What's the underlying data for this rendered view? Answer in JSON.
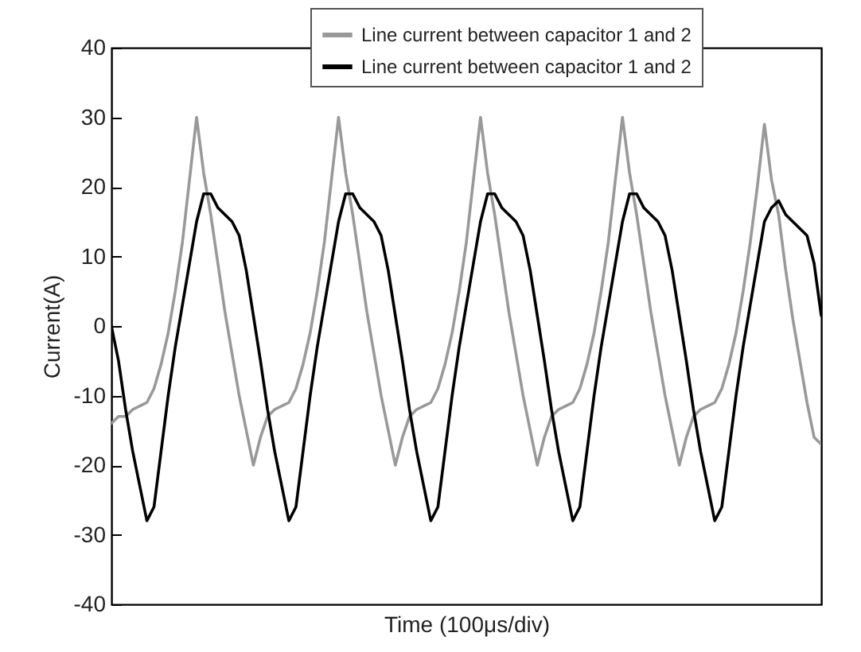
{
  "chart_data": {
    "type": "line",
    "xlabel": "Time (100μs/div)",
    "ylabel": "Current(A)",
    "categories": [
      null,
      null,
      null,
      null,
      null,
      null,
      null,
      null,
      null,
      null,
      null,
      null,
      null,
      null,
      null,
      null,
      null,
      null,
      null,
      null,
      null,
      null,
      null,
      null,
      null,
      null,
      null,
      null,
      null,
      null,
      null,
      null,
      null,
      null,
      null,
      null,
      null,
      null,
      null,
      null,
      null,
      null,
      null,
      null,
      null,
      null,
      null,
      null,
      null,
      null,
      null,
      null,
      null,
      null,
      null,
      null,
      null,
      null,
      null,
      null,
      null,
      null,
      null,
      null,
      null,
      null,
      null,
      null,
      null,
      null,
      null,
      null,
      null,
      null,
      null,
      null,
      null,
      null,
      null,
      null,
      null,
      null,
      null,
      null,
      null,
      null,
      null,
      null,
      null,
      null,
      null,
      null,
      null,
      null,
      null,
      null,
      null,
      null,
      null,
      null,
      null
    ],
    "ylim": [
      -40,
      40
    ],
    "yticks": [
      -40,
      -30,
      -20,
      -10,
      0,
      10,
      20,
      30,
      40
    ],
    "tick_labels": "y",
    "grid": false,
    "legend": "top right",
    "line_style": "solid",
    "series": [
      {
        "name": "Line current between capacitor 1 and 2",
        "color": "#999999",
        "values": [
          -14,
          -13,
          -13,
          -12,
          -11.5,
          -11,
          -9,
          -5.5,
          -1,
          5,
          12,
          21,
          30,
          22,
          16,
          9,
          2,
          -4,
          -10,
          -15,
          -20,
          -16,
          -13,
          -12,
          -11.5,
          -11,
          -9,
          -5.5,
          -1,
          5,
          12,
          21,
          30,
          22,
          16,
          9,
          2,
          -4,
          -10,
          -15,
          -20,
          -16,
          -13,
          -12,
          -11.5,
          -11,
          -9,
          -5.5,
          -1,
          5,
          12,
          21,
          30,
          22,
          16,
          9,
          2,
          -4,
          -10,
          -15,
          -20,
          -16,
          -13,
          -12,
          -11.5,
          -11,
          -9,
          -5.5,
          -1,
          5,
          12,
          21,
          30,
          22,
          16,
          9,
          2,
          -4,
          -10,
          -15,
          -20,
          -16,
          -13,
          -12,
          -11.5,
          -11,
          -9,
          -5.5,
          -1,
          5,
          12,
          20,
          29,
          21,
          16,
          8,
          1,
          -5,
          -11,
          -16,
          -17
        ]
      },
      {
        "name": "Line current between capacitor 1 and 2",
        "color": "#000000",
        "values": [
          0,
          -5,
          -12,
          -18,
          -23,
          -28,
          -26,
          -18,
          -10,
          -3,
          3,
          9,
          15,
          19,
          19,
          17,
          16,
          15,
          13,
          8,
          1.5,
          -5,
          -12,
          -18,
          -23,
          -28,
          -26,
          -18,
          -10,
          -3,
          3,
          9,
          15,
          19,
          19,
          17,
          16,
          15,
          13,
          8,
          1.5,
          -5,
          -12,
          -18,
          -23,
          -28,
          -26,
          -18,
          -10,
          -3,
          3,
          9,
          15,
          19,
          19,
          17,
          16,
          15,
          13,
          8,
          1.5,
          -5,
          -12,
          -18,
          -23,
          -28,
          -26,
          -18,
          -10,
          -3,
          3,
          9,
          15,
          19,
          19,
          17,
          16,
          15,
          13,
          8,
          1.5,
          -5,
          -12,
          -18,
          -23,
          -28,
          -26,
          -18,
          -10,
          -3,
          3,
          9,
          15,
          17,
          18,
          16,
          15,
          14,
          13,
          9,
          1.5
        ]
      }
    ]
  }
}
